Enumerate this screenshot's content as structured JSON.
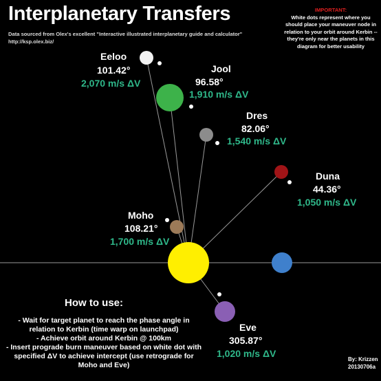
{
  "title": "Interplanetary Transfers",
  "source": {
    "line1": "Data sourced from Olex's excellent \"Interactive illustrated interplanetary guide and calculator\"",
    "line2": "http://ksp.olex.biz/"
  },
  "important": {
    "heading": "IMPORTANT:",
    "text": "White dots represent where you should place your maneuver node in relation to your orbit around Kerbin -- they're only near the planets in this diagram for better usability"
  },
  "planets": {
    "eeloo": {
      "name": "Eeloo",
      "angle": "101.42°",
      "dv": "2,070 m/s  ΔV",
      "color": "#f2f2f2"
    },
    "jool": {
      "name": "Jool",
      "angle": "96.58°",
      "dv": "1,910  m/s  ΔV",
      "color": "#3db24a"
    },
    "dres": {
      "name": "Dres",
      "angle": "82.06°",
      "dv": "1,540  m/s  ΔV",
      "color": "#8c8c8c"
    },
    "duna": {
      "name": "Duna",
      "angle": "44.36°",
      "dv": "1,050 m/s  ΔV",
      "color": "#a01417"
    },
    "moho": {
      "name": "Moho",
      "angle": "108.21°",
      "dv": "1,700 m/s  ΔV",
      "color": "#9c7a58"
    },
    "eve": {
      "name": "Eve",
      "angle": "305.87°",
      "dv": "1,020  m/s  ΔV",
      "color": "#8a5fb4"
    },
    "kerbin": {
      "color": "#3f80cc"
    },
    "sun": {
      "color": "#ffef00"
    }
  },
  "howto": {
    "heading": "How to use:",
    "lines": [
      "- Wait for target planet to reach the phase angle in relation to Kerbin (time warp on launchpad)",
      "- Achieve orbit around Kerbin @ 100km",
      "- Insert prograde burn maneuver based on white dot with specified  ΔV to achieve intercept (use retrograde for Moho and Eve)"
    ]
  },
  "credit": {
    "by": "By: Krizzen",
    "date": "20130706a"
  }
}
